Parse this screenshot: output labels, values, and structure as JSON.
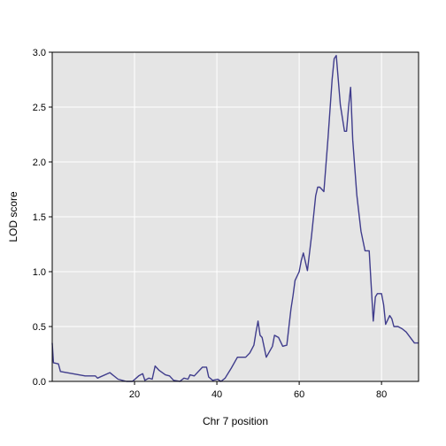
{
  "chart_data": {
    "type": "line",
    "title": "",
    "xlabel": "Chr 7 position",
    "ylabel": "LOD score",
    "xlim": [
      0,
      89
    ],
    "ylim": [
      0,
      3.0
    ],
    "x_ticks": [
      20,
      40,
      60,
      80
    ],
    "y_ticks": [
      0.0,
      0.5,
      1.0,
      1.5,
      2.0,
      2.5,
      3.0
    ],
    "x_tick_labels": [
      "20",
      "40",
      "60",
      "80"
    ],
    "y_tick_labels": [
      "0.0",
      "0.5",
      "1.0",
      "1.5",
      "2.0",
      "2.5",
      "3.0"
    ],
    "grid": true,
    "colors": {
      "panel": "#e5e5e5",
      "grid": "#ffffff",
      "line": "#3f3c8c",
      "border": "#000000"
    },
    "series": [
      {
        "x": [
          0,
          0.3,
          1.5,
          2.0,
          5.0,
          8.0,
          10.5,
          11.0,
          14.0,
          16.0,
          18.0,
          19.5,
          21.0,
          22.0,
          22.5,
          23.5,
          24.3,
          25.0,
          26.0,
          27.5,
          28.5,
          29.5,
          31.0,
          32.0,
          33.0,
          33.5,
          34.5,
          36.5,
          37.5,
          38.0,
          39.0,
          40.2,
          41.0,
          42.0,
          43.5,
          45.0,
          46.0,
          47.0,
          48.0,
          49.0,
          49.5,
          50.0,
          50.5,
          51.0,
          52.0,
          53.5,
          54.0,
          55.0,
          56.0,
          57.0,
          58.0,
          58.5,
          59.0,
          60.0,
          60.5,
          61.0,
          62.0,
          63.0,
          64.0,
          64.5,
          65.0,
          66.0,
          67.0,
          68.0,
          68.5,
          69.0,
          70.0,
          71.0,
          71.5,
          72.0,
          72.5,
          73.0,
          74.0,
          75.0,
          76.0,
          77.0,
          78.0,
          78.5,
          79.0,
          80.0,
          80.5,
          81.0,
          82.0,
          82.5,
          83.0,
          84.0,
          85.0,
          86.0,
          87.0,
          88.0,
          89.0
        ],
        "y": [
          0.35,
          0.17,
          0.16,
          0.09,
          0.07,
          0.05,
          0.05,
          0.03,
          0.08,
          0.02,
          0.0,
          0.0,
          0.05,
          0.07,
          0.01,
          0.03,
          0.02,
          0.14,
          0.1,
          0.06,
          0.05,
          0.01,
          0.0,
          0.03,
          0.02,
          0.06,
          0.05,
          0.13,
          0.13,
          0.04,
          0.01,
          0.02,
          0.0,
          0.03,
          0.12,
          0.22,
          0.22,
          0.22,
          0.26,
          0.33,
          0.45,
          0.55,
          0.42,
          0.4,
          0.22,
          0.32,
          0.42,
          0.4,
          0.32,
          0.33,
          0.66,
          0.78,
          0.92,
          1.0,
          1.1,
          1.17,
          1.01,
          1.33,
          1.69,
          1.77,
          1.77,
          1.73,
          2.22,
          2.75,
          2.94,
          2.97,
          2.52,
          2.28,
          2.28,
          2.5,
          2.68,
          2.2,
          1.7,
          1.37,
          1.19,
          1.19,
          0.55,
          0.77,
          0.8,
          0.8,
          0.7,
          0.52,
          0.6,
          0.57,
          0.5,
          0.5,
          0.48,
          0.45,
          0.4,
          0.35,
          0.35
        ]
      }
    ]
  }
}
